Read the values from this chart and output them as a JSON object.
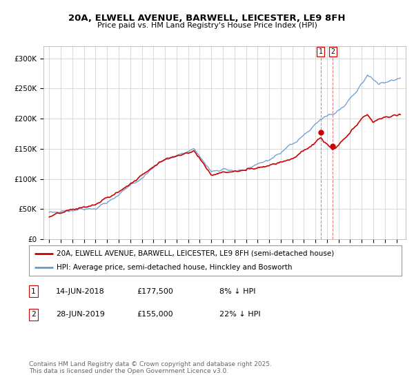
{
  "title_line1": "20A, ELWELL AVENUE, BARWELL, LEICESTER, LE9 8FH",
  "title_line2": "Price paid vs. HM Land Registry's House Price Index (HPI)",
  "legend_line1": "20A, ELWELL AVENUE, BARWELL, LEICESTER, LE9 8FH (semi-detached house)",
  "legend_line2": "HPI: Average price, semi-detached house, Hinckley and Bosworth",
  "transaction1_date": "14-JUN-2018",
  "transaction1_price": "£177,500",
  "transaction1_note": "8% ↓ HPI",
  "transaction2_date": "28-JUN-2019",
  "transaction2_price": "£155,000",
  "transaction2_note": "22% ↓ HPI",
  "copyright_text": "Contains HM Land Registry data © Crown copyright and database right 2025.\nThis data is licensed under the Open Government Licence v3.0.",
  "hpi_color": "#6699cc",
  "price_color": "#cc0000",
  "vline_color": "#cc0000",
  "grid_color": "#cccccc",
  "ylim": [
    0,
    320000
  ],
  "yticks": [
    0,
    50000,
    100000,
    150000,
    200000,
    250000,
    300000
  ],
  "ytick_labels": [
    "£0",
    "£50K",
    "£100K",
    "£150K",
    "£200K",
    "£250K",
    "£300K"
  ],
  "transaction1_x": 2018.45,
  "transaction1_y": 177500,
  "transaction2_x": 2019.49,
  "transaction2_y": 155000,
  "xmin": 1994.5,
  "xmax": 2025.8
}
